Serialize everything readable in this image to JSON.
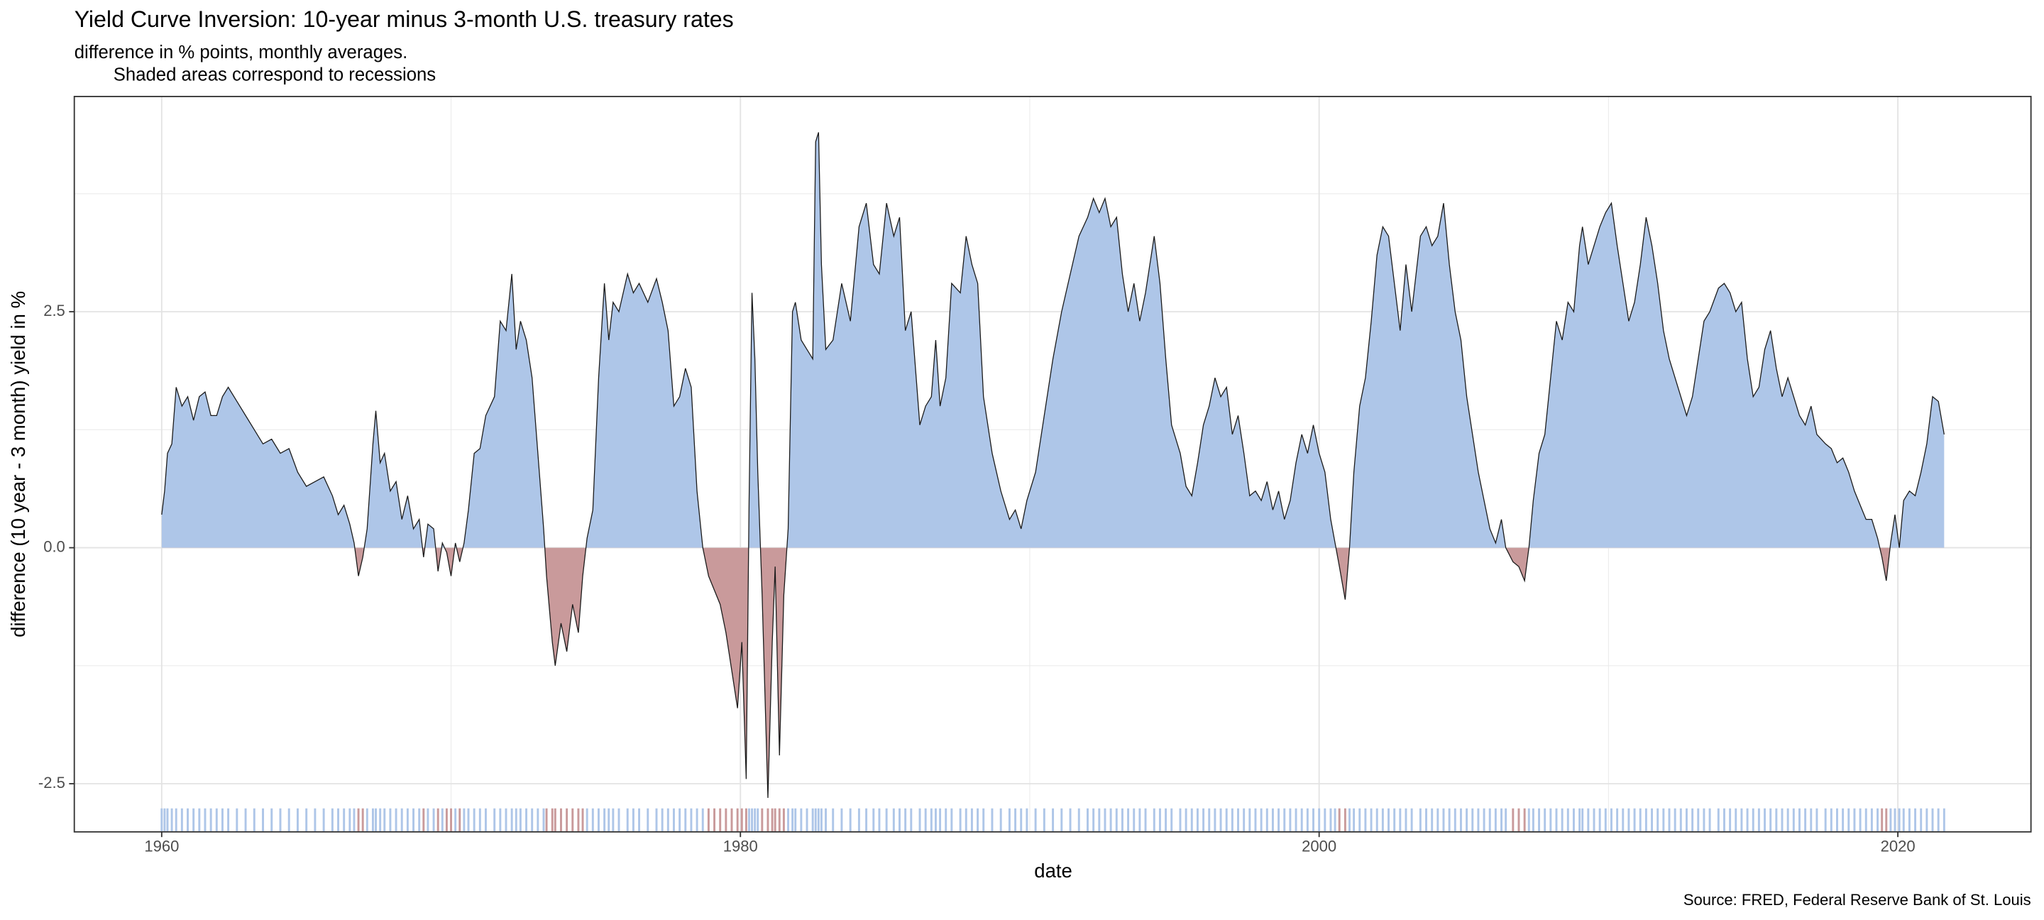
{
  "chart_data": {
    "type": "area",
    "title": "Yield Curve Inversion: 10-year minus 3-month U.S. treasury rates",
    "subtitle": [
      "difference in % points, monthly averages.",
      "Shaded areas correspond to recessions"
    ],
    "caption": "Source: FRED, Federal Reserve Bank of St. Louis",
    "x_label": "date",
    "y_label": "difference (10 year - 3 month) yield in %",
    "xlim": [
      1956.98,
      2024.6
    ],
    "ylim": [
      -3.01,
      4.78
    ],
    "xticks": [
      1960,
      1980,
      2000,
      2020
    ],
    "yticks": [
      -2.5,
      {
        "value": 0,
        "label": "0.0"
      },
      2.5
    ],
    "grid": true,
    "positive_color": "#aec6e8",
    "negative_color": "#c99a9b",
    "line_color": "#1a1a1a",
    "x": [
      1960.0,
      1960.1,
      1960.2,
      1960.35,
      1960.5,
      1960.7,
      1960.9,
      1961.1,
      1961.3,
      1961.5,
      1961.7,
      1961.9,
      1962.1,
      1962.3,
      1962.6,
      1962.9,
      1963.2,
      1963.5,
      1963.8,
      1964.1,
      1964.4,
      1964.7,
      1965.0,
      1965.3,
      1965.6,
      1965.9,
      1966.1,
      1966.3,
      1966.5,
      1966.65,
      1966.8,
      1966.95,
      1967.1,
      1967.3,
      1967.4,
      1967.55,
      1967.7,
      1967.9,
      1968.1,
      1968.3,
      1968.5,
      1968.7,
      1968.9,
      1969.05,
      1969.2,
      1969.4,
      1969.55,
      1969.7,
      1969.85,
      1970.0,
      1970.15,
      1970.3,
      1970.45,
      1970.6,
      1970.8,
      1971.0,
      1971.2,
      1971.5,
      1971.7,
      1971.9,
      1972.1,
      1972.25,
      1972.4,
      1972.6,
      1972.8,
      1973.0,
      1973.2,
      1973.3,
      1973.5,
      1973.6,
      1973.8,
      1974.0,
      1974.2,
      1974.4,
      1974.55,
      1974.7,
      1974.9,
      1975.1,
      1975.3,
      1975.45,
      1975.6,
      1975.8,
      1976.1,
      1976.3,
      1976.5,
      1976.8,
      1977.1,
      1977.3,
      1977.5,
      1977.7,
      1977.9,
      1978.1,
      1978.3,
      1978.5,
      1978.7,
      1978.9,
      1979.1,
      1979.3,
      1979.5,
      1979.7,
      1979.9,
      1980.05,
      1980.2,
      1980.3,
      1980.4,
      1980.5,
      1980.6,
      1980.75,
      1980.95,
      1981.1,
      1981.2,
      1981.35,
      1981.5,
      1981.65,
      1981.8,
      1981.9,
      1982.1,
      1982.3,
      1982.5,
      1982.6,
      1982.7,
      1982.8,
      1982.95,
      1983.2,
      1983.5,
      1983.8,
      1984.1,
      1984.35,
      1984.6,
      1984.8,
      1985.05,
      1985.3,
      1985.5,
      1985.7,
      1985.9,
      1986.2,
      1986.4,
      1986.6,
      1986.75,
      1986.9,
      1987.1,
      1987.3,
      1987.6,
      1987.8,
      1988.0,
      1988.2,
      1988.4,
      1988.7,
      1989.0,
      1989.3,
      1989.5,
      1989.7,
      1989.9,
      1990.2,
      1990.5,
      1990.8,
      1991.1,
      1991.4,
      1991.7,
      1992.0,
      1992.2,
      1992.4,
      1992.6,
      1992.8,
      1993.0,
      1993.2,
      1993.4,
      1993.6,
      1993.8,
      1994.0,
      1994.3,
      1994.5,
      1994.7,
      1994.9,
      1995.2,
      1995.4,
      1995.6,
      1995.8,
      1996.0,
      1996.2,
      1996.4,
      1996.6,
      1996.8,
      1997.0,
      1997.2,
      1997.4,
      1997.6,
      1997.8,
      1998.0,
      1998.2,
      1998.4,
      1998.6,
      1998.8,
      1999.0,
      1999.2,
      1999.4,
      1999.6,
      1999.8,
      2000.0,
      2000.2,
      2000.4,
      2000.55,
      2000.7,
      2000.9,
      2001.05,
      2001.2,
      2001.4,
      2001.6,
      2001.8,
      2002.0,
      2002.2,
      2002.4,
      2002.6,
      2002.8,
      2003.0,
      2003.2,
      2003.5,
      2003.7,
      2003.9,
      2004.1,
      2004.3,
      2004.5,
      2004.7,
      2004.9,
      2005.1,
      2005.3,
      2005.5,
      2005.7,
      2005.9,
      2006.1,
      2006.3,
      2006.45,
      2006.7,
      2006.9,
      2007.1,
      2007.25,
      2007.4,
      2007.6,
      2007.8,
      2008.0,
      2008.2,
      2008.4,
      2008.6,
      2008.8,
      2009.0,
      2009.1,
      2009.3,
      2009.5,
      2009.7,
      2009.9,
      2010.1,
      2010.3,
      2010.5,
      2010.7,
      2010.9,
      2011.1,
      2011.3,
      2011.5,
      2011.7,
      2011.9,
      2012.1,
      2012.3,
      2012.5,
      2012.7,
      2012.9,
      2013.1,
      2013.3,
      2013.5,
      2013.8,
      2014.0,
      2014.2,
      2014.4,
      2014.6,
      2014.8,
      2015.0,
      2015.2,
      2015.4,
      2015.6,
      2015.8,
      2016.0,
      2016.2,
      2016.4,
      2016.6,
      2016.8,
      2017.0,
      2017.2,
      2017.5,
      2017.7,
      2017.9,
      2018.1,
      2018.3,
      2018.5,
      2018.7,
      2018.9,
      2019.1,
      2019.3,
      2019.45,
      2019.6,
      2019.75,
      2019.9,
      2020.05,
      2020.2,
      2020.4,
      2020.6,
      2020.8,
      2021.0,
      2021.2,
      2021.4,
      2021.6
    ],
    "values": [
      0.35,
      0.6,
      1.0,
      1.1,
      1.7,
      1.5,
      1.6,
      1.35,
      1.6,
      1.65,
      1.4,
      1.4,
      1.6,
      1.7,
      1.55,
      1.4,
      1.25,
      1.1,
      1.15,
      1.0,
      1.05,
      0.8,
      0.65,
      0.7,
      0.75,
      0.55,
      0.35,
      0.45,
      0.25,
      0.05,
      -0.3,
      -0.1,
      0.2,
      1.1,
      1.45,
      0.9,
      1.0,
      0.6,
      0.7,
      0.3,
      0.55,
      0.2,
      0.3,
      -0.1,
      0.25,
      0.2,
      -0.25,
      0.05,
      -0.05,
      -0.3,
      0.05,
      -0.15,
      0.05,
      0.4,
      1.0,
      1.05,
      1.4,
      1.6,
      2.4,
      2.3,
      2.9,
      2.1,
      2.4,
      2.2,
      1.8,
      1.0,
      0.2,
      -0.3,
      -1.0,
      -1.25,
      -0.8,
      -1.1,
      -0.6,
      -0.9,
      -0.3,
      0.1,
      0.4,
      1.8,
      2.8,
      2.2,
      2.6,
      2.5,
      2.9,
      2.7,
      2.8,
      2.6,
      2.85,
      2.6,
      2.3,
      1.5,
      1.6,
      1.9,
      1.7,
      0.6,
      0.0,
      -0.3,
      -0.45,
      -0.6,
      -0.9,
      -1.3,
      -1.7,
      -1.0,
      -2.45,
      0.5,
      2.7,
      2.0,
      0.8,
      -0.5,
      -2.65,
      -1.0,
      -0.2,
      -2.2,
      -0.5,
      0.2,
      2.5,
      2.6,
      2.2,
      2.1,
      2.0,
      4.3,
      4.4,
      3.0,
      2.1,
      2.2,
      2.8,
      2.4,
      3.4,
      3.65,
      3.0,
      2.9,
      3.65,
      3.3,
      3.5,
      2.3,
      2.5,
      1.3,
      1.5,
      1.6,
      2.2,
      1.5,
      1.8,
      2.8,
      2.7,
      3.3,
      3.0,
      2.8,
      1.6,
      1.0,
      0.6,
      0.3,
      0.4,
      0.2,
      0.5,
      0.8,
      1.4,
      2.0,
      2.5,
      2.9,
      3.3,
      3.5,
      3.7,
      3.55,
      3.7,
      3.4,
      3.5,
      2.9,
      2.5,
      2.8,
      2.4,
      2.7,
      3.3,
      2.8,
      2.0,
      1.3,
      1.0,
      0.65,
      0.55,
      0.9,
      1.3,
      1.5,
      1.8,
      1.6,
      1.7,
      1.2,
      1.4,
      1.0,
      0.55,
      0.6,
      0.5,
      0.7,
      0.4,
      0.6,
      0.3,
      0.5,
      0.9,
      1.2,
      1.0,
      1.3,
      1.0,
      0.8,
      0.3,
      0.05,
      -0.2,
      -0.55,
      0.0,
      0.8,
      1.5,
      1.8,
      2.4,
      3.1,
      3.4,
      3.3,
      2.8,
      2.3,
      3.0,
      2.5,
      3.3,
      3.4,
      3.2,
      3.3,
      3.65,
      3.0,
      2.5,
      2.2,
      1.6,
      1.2,
      0.8,
      0.5,
      0.2,
      0.05,
      0.3,
      0.0,
      -0.15,
      -0.2,
      -0.35,
      0.0,
      0.5,
      1.0,
      1.2,
      1.8,
      2.4,
      2.2,
      2.6,
      2.5,
      3.2,
      3.4,
      3.0,
      3.2,
      3.4,
      3.55,
      3.65,
      3.2,
      2.8,
      2.4,
      2.6,
      3.0,
      3.5,
      3.2,
      2.8,
      2.3,
      2.0,
      1.8,
      1.6,
      1.4,
      1.6,
      2.0,
      2.4,
      2.5,
      2.75,
      2.8,
      2.7,
      2.5,
      2.6,
      2.0,
      1.6,
      1.7,
      2.1,
      2.3,
      1.9,
      1.6,
      1.8,
      1.6,
      1.4,
      1.3,
      1.5,
      1.2,
      1.1,
      1.05,
      0.9,
      0.95,
      0.8,
      0.6,
      0.45,
      0.3,
      0.3,
      0.1,
      -0.1,
      -0.35,
      0.05,
      0.35,
      0.0,
      0.5,
      0.6,
      0.55,
      0.8,
      1.1,
      1.6,
      1.55,
      1.2
    ]
  }
}
